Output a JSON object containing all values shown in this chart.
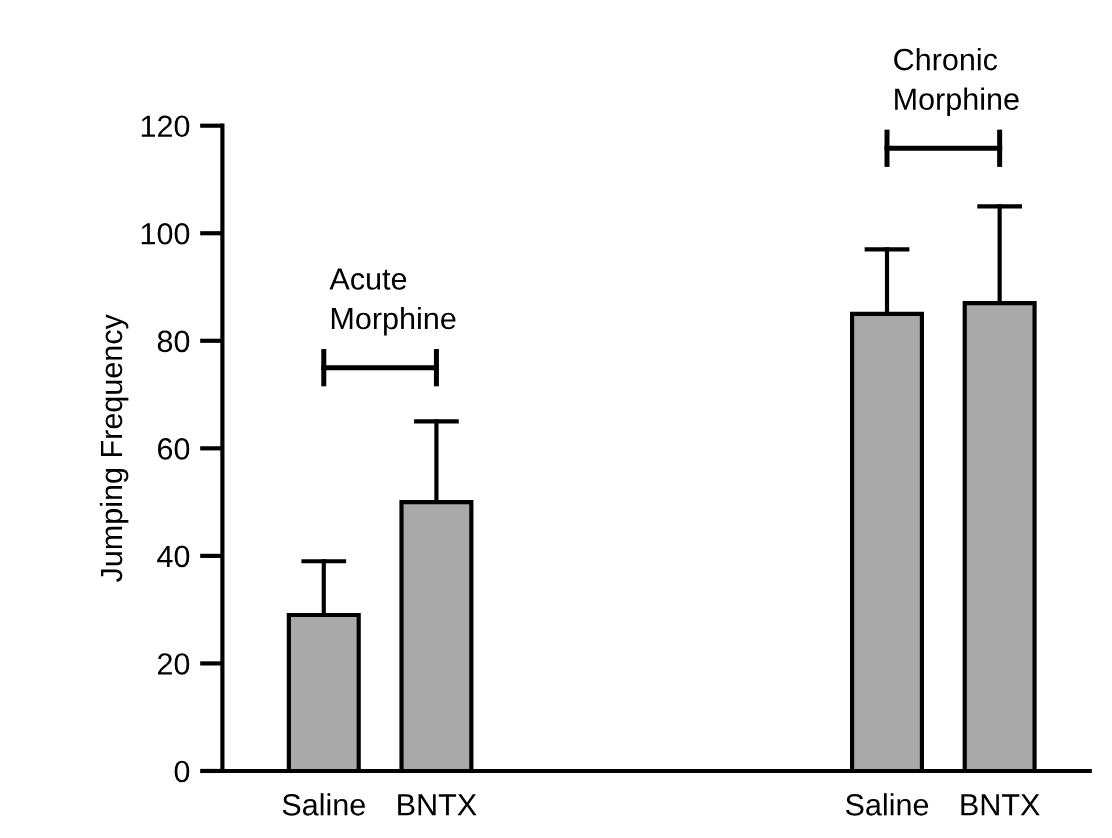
{
  "chart_data": {
    "type": "bar",
    "ylabel": "Jumping Frequency",
    "categories": [
      "Saline",
      "BNTX",
      null,
      null,
      null,
      "Saline",
      "BNTX"
    ],
    "values": [
      29,
      50,
      null,
      null,
      null,
      85,
      87
    ],
    "errors": [
      [
        29,
        39
      ],
      [
        50,
        65
      ],
      null,
      null,
      null,
      [
        85,
        97
      ],
      [
        87,
        105
      ]
    ],
    "color": "#a9a9a9",
    "ylim": [
      0,
      120
    ],
    "yticks": [
      0,
      20,
      40,
      60,
      80,
      100,
      120
    ],
    "grid": false,
    "annotations": [
      "Acute\nMorphine",
      "Chronic\nMorphine"
    ]
  }
}
